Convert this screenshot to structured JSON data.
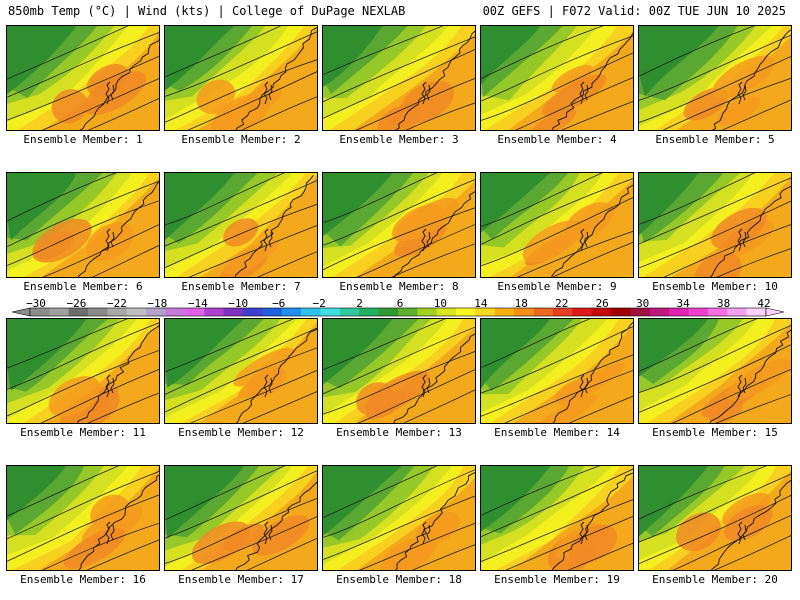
{
  "header": {
    "left": "850mb Temp (°C) | Wind (kts) | College of DuPage NEXLAB",
    "right": "00Z GEFS | F072 Valid: 00Z TUE JUN 10 2025"
  },
  "members": [
    {
      "label": "Ensemble Member: 1"
    },
    {
      "label": "Ensemble Member: 2"
    },
    {
      "label": "Ensemble Member: 3"
    },
    {
      "label": "Ensemble Member: 4"
    },
    {
      "label": "Ensemble Member: 5"
    },
    {
      "label": "Ensemble Member: 6"
    },
    {
      "label": "Ensemble Member: 7"
    },
    {
      "label": "Ensemble Member: 8"
    },
    {
      "label": "Ensemble Member: 9"
    },
    {
      "label": "Ensemble Member: 10"
    },
    {
      "label": "Ensemble Member: 11"
    },
    {
      "label": "Ensemble Member: 12"
    },
    {
      "label": "Ensemble Member: 13"
    },
    {
      "label": "Ensemble Member: 14"
    },
    {
      "label": "Ensemble Member: 15"
    },
    {
      "label": "Ensemble Member: 16"
    },
    {
      "label": "Ensemble Member: 17"
    },
    {
      "label": "Ensemble Member: 18"
    },
    {
      "label": "Ensemble Member: 19"
    },
    {
      "label": "Ensemble Member: 20"
    }
  ],
  "colorbar": {
    "tick_labels": [
      "−30",
      "−26",
      "−22",
      "−18",
      "−14",
      "−10",
      "−6",
      "−2",
      "2",
      "6",
      "10",
      "14",
      "18",
      "22",
      "26",
      "30",
      "34",
      "38",
      "42"
    ],
    "colors": [
      "#8c8c8c",
      "#a0a0a0",
      "#6e6e6e",
      "#8a8a8a",
      "#a8a8a8",
      "#c0c0c0",
      "#b4a0c8",
      "#c878dc",
      "#e060e8",
      "#b040d0",
      "#8030c0",
      "#4040d0",
      "#2060e0",
      "#2090f0",
      "#30c0f0",
      "#40e0e0",
      "#30c8a0",
      "#20b060",
      "#309a30",
      "#60b030",
      "#a0d020",
      "#d8e820",
      "#f8f820",
      "#f8d820",
      "#f8b010",
      "#f89018",
      "#f06820",
      "#e84020",
      "#e01818",
      "#c80808",
      "#a00000",
      "#a01040",
      "#c01880",
      "#e020b0",
      "#f040d0",
      "#f870e0",
      "#f8a0f0",
      "#fcd0f8"
    ]
  }
}
